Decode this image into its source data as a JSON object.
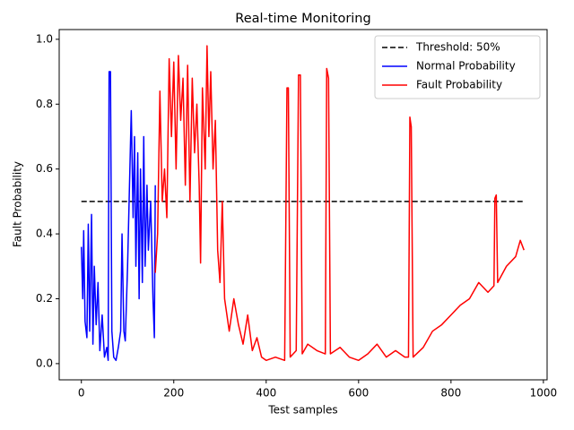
{
  "chart_data": {
    "type": "line",
    "title": "Real-time Monitoring",
    "xlabel": "Test samples",
    "ylabel": "Fault Probability",
    "xlim": [
      -48,
      1008
    ],
    "ylim": [
      -0.05,
      1.03
    ],
    "xticks": [
      0,
      200,
      400,
      600,
      800,
      1000
    ],
    "yticks": [
      {
        "value": 0,
        "label": "0.0"
      },
      {
        "value": 0.2,
        "label": "0.2"
      },
      {
        "value": 0.4,
        "label": "0.4"
      },
      {
        "value": 0.6,
        "label": "0.6"
      },
      {
        "value": 0.8,
        "label": "0.8"
      },
      {
        "value": 1,
        "label": "1.0"
      }
    ],
    "legend": "upper right",
    "series": [
      {
        "name": "Threshold: 50%",
        "color": "#000000",
        "linestyle": "dashed",
        "x": [
          0,
          958
        ],
        "values": [
          0.5,
          0.5
        ]
      },
      {
        "name": "Normal Probability",
        "color": "#0000ff",
        "linestyle": "solid",
        "x": [
          0,
          3,
          5,
          8,
          12,
          15,
          18,
          22,
          25,
          28,
          32,
          36,
          40,
          45,
          50,
          55,
          58,
          60,
          63,
          66,
          70,
          75,
          80,
          85,
          88,
          92,
          95,
          100,
          105,
          108,
          112,
          115,
          118,
          122,
          125,
          128,
          132,
          135,
          138,
          142,
          145,
          150,
          155,
          158,
          160
        ],
        "values": [
          0.36,
          0.2,
          0.41,
          0.13,
          0.08,
          0.43,
          0.1,
          0.46,
          0.06,
          0.3,
          0.12,
          0.25,
          0.04,
          0.15,
          0.02,
          0.05,
          0.01,
          0.9,
          0.9,
          0.1,
          0.02,
          0.01,
          0.05,
          0.1,
          0.4,
          0.1,
          0.07,
          0.3,
          0.6,
          0.78,
          0.45,
          0.7,
          0.3,
          0.65,
          0.2,
          0.6,
          0.25,
          0.7,
          0.3,
          0.55,
          0.35,
          0.5,
          0.2,
          0.08,
          0.55
        ]
      },
      {
        "name": "Fault Probability",
        "color": "#ff0000",
        "linestyle": "solid",
        "x": [
          160,
          165,
          170,
          175,
          180,
          185,
          190,
          195,
          200,
          205,
          210,
          215,
          220,
          225,
          230,
          235,
          240,
          245,
          250,
          255,
          258,
          262,
          268,
          272,
          276,
          280,
          285,
          290,
          295,
          300,
          305,
          310,
          320,
          330,
          340,
          350,
          360,
          370,
          380,
          390,
          400,
          420,
          440,
          445,
          448,
          452,
          465,
          470,
          474,
          478,
          490,
          510,
          528,
          531,
          535,
          539,
          560,
          580,
          600,
          620,
          640,
          660,
          680,
          700,
          708,
          711,
          714,
          718,
          740,
          760,
          780,
          800,
          820,
          840,
          860,
          880,
          893,
          895,
          898,
          901,
          920,
          940,
          950,
          958
        ],
        "values": [
          0.28,
          0.4,
          0.84,
          0.5,
          0.6,
          0.45,
          0.94,
          0.7,
          0.93,
          0.6,
          0.95,
          0.75,
          0.88,
          0.55,
          0.92,
          0.5,
          0.88,
          0.65,
          0.8,
          0.55,
          0.31,
          0.85,
          0.6,
          0.98,
          0.7,
          0.9,
          0.6,
          0.75,
          0.35,
          0.25,
          0.5,
          0.2,
          0.1,
          0.2,
          0.12,
          0.06,
          0.15,
          0.04,
          0.08,
          0.02,
          0.01,
          0.02,
          0.01,
          0.85,
          0.85,
          0.02,
          0.04,
          0.89,
          0.89,
          0.03,
          0.06,
          0.04,
          0.03,
          0.91,
          0.88,
          0.03,
          0.05,
          0.02,
          0.01,
          0.03,
          0.06,
          0.02,
          0.04,
          0.02,
          0.02,
          0.76,
          0.73,
          0.02,
          0.05,
          0.1,
          0.12,
          0.15,
          0.18,
          0.2,
          0.25,
          0.22,
          0.24,
          0.51,
          0.52,
          0.25,
          0.3,
          0.33,
          0.38,
          0.35
        ]
      }
    ]
  }
}
